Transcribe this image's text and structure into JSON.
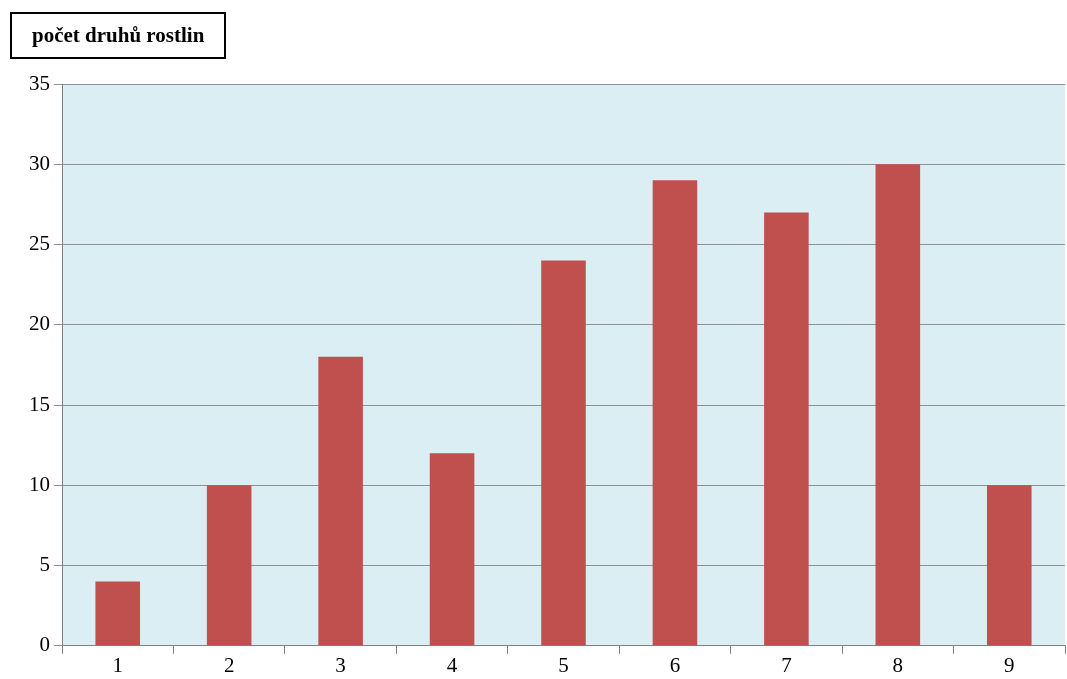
{
  "chart_data": {
    "type": "bar",
    "ylabel": "počet druhů rostlin",
    "categories": [
      "1",
      "2",
      "3",
      "4",
      "5",
      "6",
      "7",
      "8",
      "9"
    ],
    "values": [
      4,
      10,
      18,
      12,
      24,
      29,
      27,
      30,
      10
    ],
    "color": "#c0504d",
    "ylim": [
      0,
      35
    ],
    "yticks": [
      0,
      5,
      10,
      15,
      20,
      25,
      30,
      35
    ],
    "grid": "y"
  }
}
